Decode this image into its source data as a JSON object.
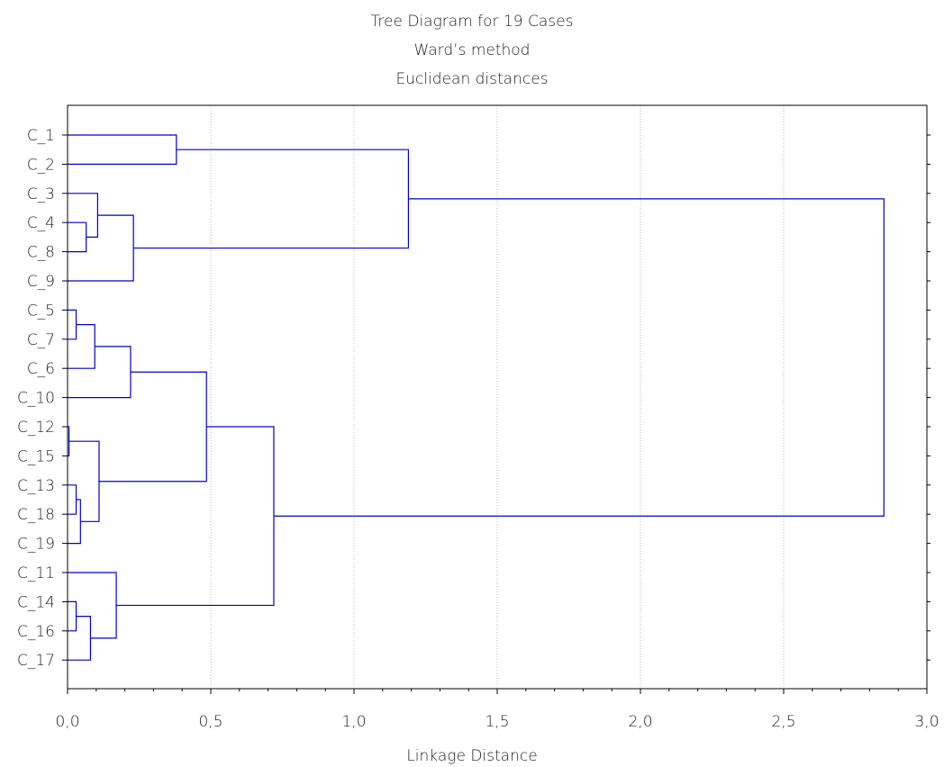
{
  "chart_data": {
    "type": "dendrogram",
    "title": "Tree Diagram for 19 Cases",
    "subtitle": [
      "Ward’s method",
      "Euclidean distances"
    ],
    "xlabel": "Linkage Distance",
    "ylabel": "",
    "xlim": [
      0,
      3
    ],
    "x_ticks": [
      "0,0",
      "0,5",
      "1,0",
      "1,5",
      "2,0",
      "2,5",
      "3,0"
    ],
    "x_tick_values": [
      0,
      0.5,
      1,
      1.5,
      2,
      2.5,
      3
    ],
    "grid": "vertical dotted",
    "leaves": [
      "C_1",
      "C_2",
      "C_3",
      "C_4",
      "C_8",
      "C_9",
      "C_5",
      "C_7",
      "C_6",
      "C_10",
      "C_12",
      "C_15",
      "C_13",
      "C_18",
      "C_19",
      "C_11",
      "C_14",
      "C_16",
      "C_17"
    ],
    "merges": [
      {
        "id": "m1",
        "left": "C_12",
        "right": "C_15",
        "height": 0.005
      },
      {
        "id": "m2",
        "left": "C_5",
        "right": "C_7",
        "height": 0.03
      },
      {
        "id": "m3",
        "left": "C_14",
        "right": "C_16",
        "height": 0.03
      },
      {
        "id": "m4",
        "left": "C_13",
        "right": "C_18",
        "height": 0.03
      },
      {
        "id": "m5",
        "left": "m4",
        "right": "C_19",
        "height": 0.045
      },
      {
        "id": "m6",
        "left": "C_4",
        "right": "C_8",
        "height": 0.065
      },
      {
        "id": "m7",
        "left": "m3",
        "right": "C_17",
        "height": 0.08
      },
      {
        "id": "m8",
        "left": "m2",
        "right": "C_6",
        "height": 0.095
      },
      {
        "id": "m9",
        "left": "C_3",
        "right": "m6",
        "height": 0.105
      },
      {
        "id": "m10",
        "left": "m1",
        "right": "m5",
        "height": 0.11
      },
      {
        "id": "m11",
        "left": "C_11",
        "right": "m7",
        "height": 0.17
      },
      {
        "id": "m12",
        "left": "m8",
        "right": "C_10",
        "height": 0.22
      },
      {
        "id": "m13",
        "left": "m9",
        "right": "C_9",
        "height": 0.23
      },
      {
        "id": "m14",
        "left": "C_1",
        "right": "C_2",
        "height": 0.38
      },
      {
        "id": "m15",
        "left": "m12",
        "right": "m10",
        "height": 0.485
      },
      {
        "id": "m16",
        "left": "m15",
        "right": "m11",
        "height": 0.72
      },
      {
        "id": "m17",
        "left": "m14",
        "right": "m13",
        "height": 1.19
      },
      {
        "id": "m18",
        "left": "m17",
        "right": "m16",
        "height": 2.85
      }
    ],
    "colors": {
      "lines": "#0000cc",
      "axes": "#000000",
      "grid": "#bbbbbb"
    }
  }
}
